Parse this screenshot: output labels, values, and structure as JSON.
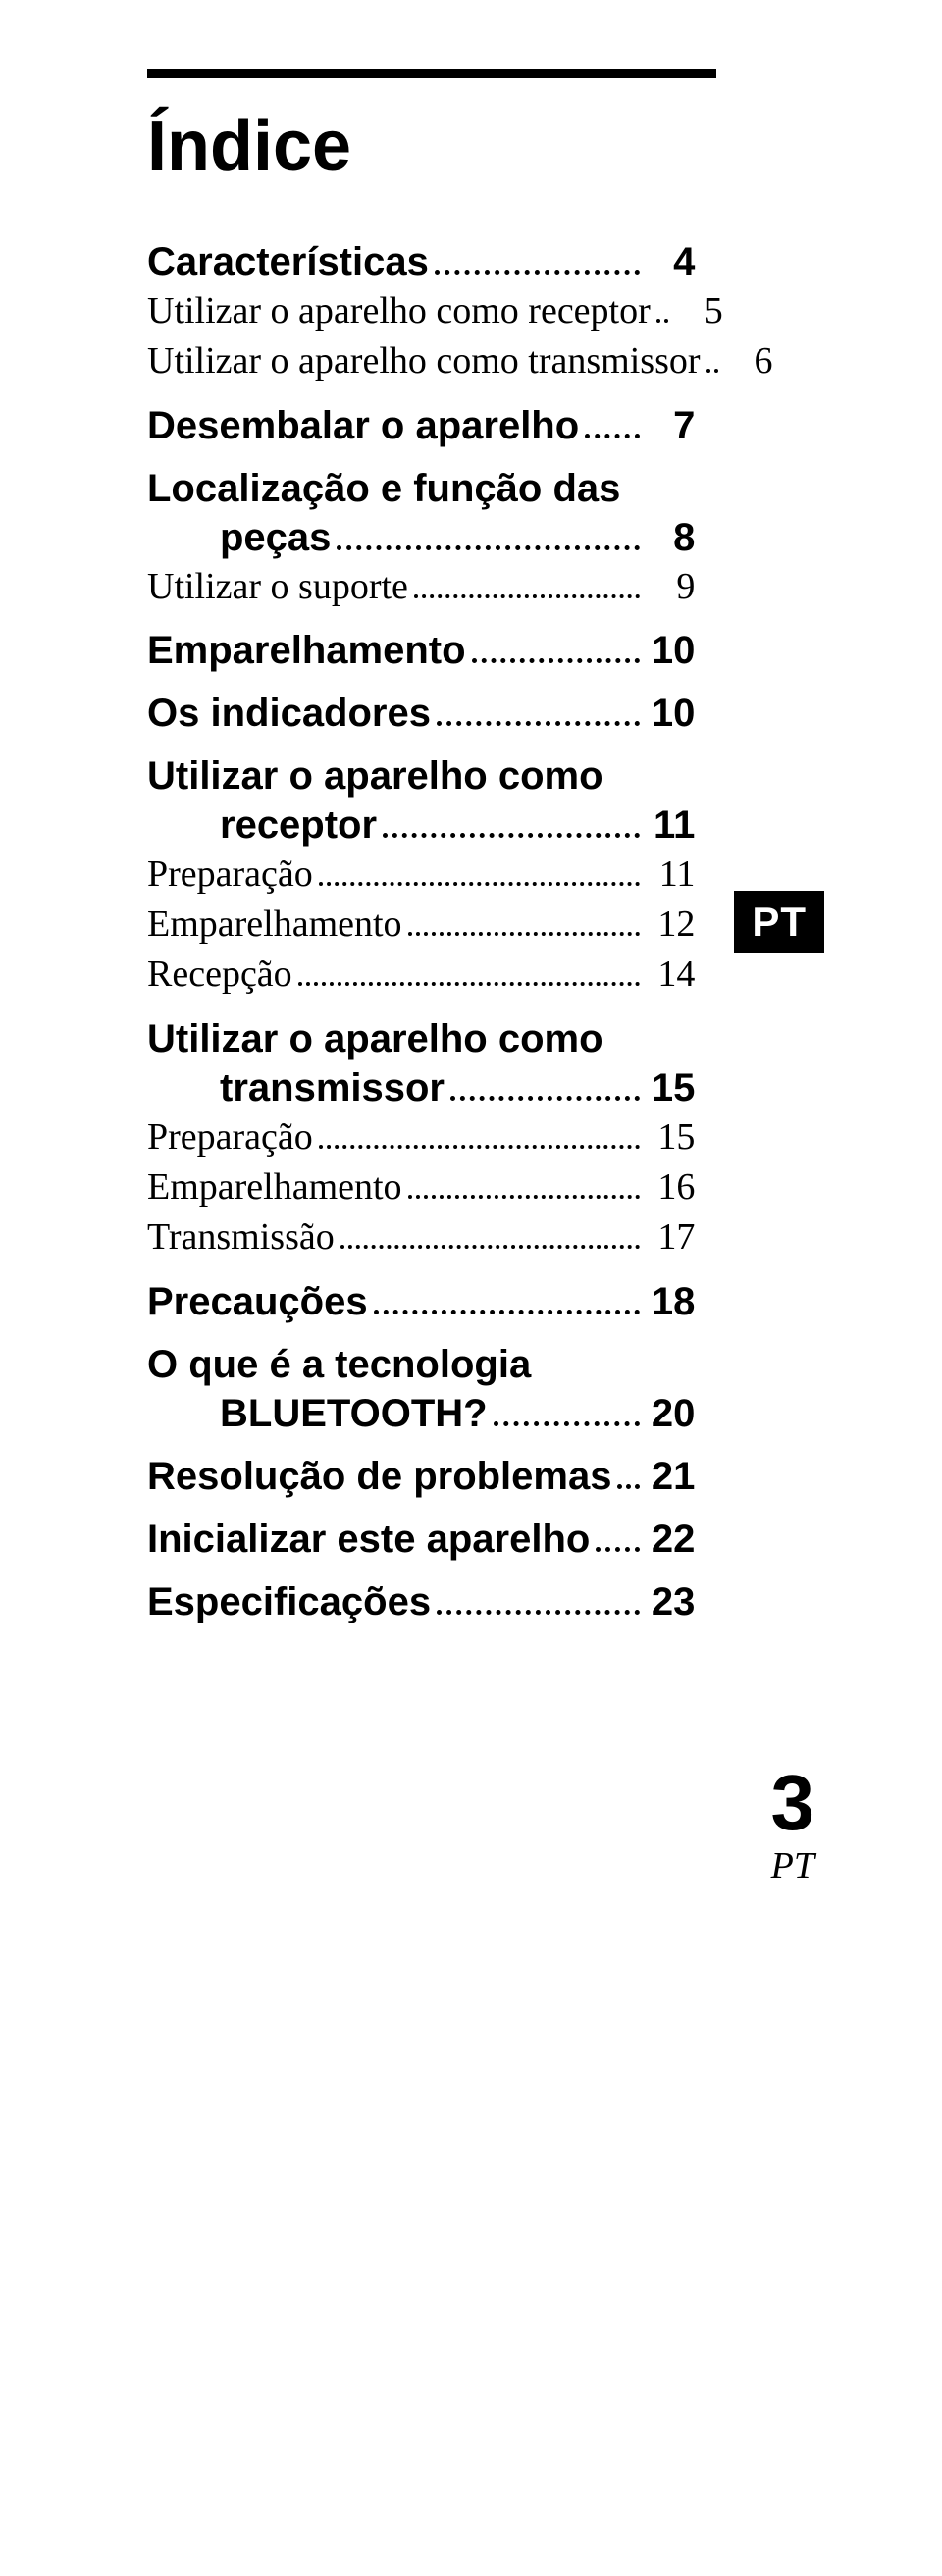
{
  "colors": {
    "fg": "#000000",
    "bg": "#ffffff"
  },
  "title": "Índice",
  "badge": "PT",
  "footer": {
    "page_num": "3",
    "lang": "PT"
  },
  "toc": [
    {
      "type": "chapter",
      "label": "Características",
      "page": "4"
    },
    {
      "type": "sub",
      "label": "Utilizar o aparelho como receptor",
      "page": "5"
    },
    {
      "type": "sub",
      "label": "Utilizar o aparelho como transmissor",
      "page": "6"
    },
    {
      "type": "chapter",
      "label": "Desembalar o aparelho",
      "page": "7"
    },
    {
      "type": "chapter_multiline",
      "label_lines": [
        "Localização e função das",
        "peças"
      ],
      "page": "8"
    },
    {
      "type": "sub",
      "label": "Utilizar o suporte",
      "page": "9"
    },
    {
      "type": "chapter",
      "label": "Emparelhamento",
      "page": "10"
    },
    {
      "type": "chapter",
      "label": "Os indicadores",
      "page": "10"
    },
    {
      "type": "chapter_multiline",
      "label_lines": [
        "Utilizar o aparelho como",
        "receptor"
      ],
      "page": "11"
    },
    {
      "type": "sub",
      "label": "Preparação",
      "page": "11"
    },
    {
      "type": "sub",
      "label": "Emparelhamento",
      "page": "12"
    },
    {
      "type": "sub",
      "label": "Recepção",
      "page": "14"
    },
    {
      "type": "chapter_multiline",
      "label_lines": [
        "Utilizar o aparelho como",
        "transmissor"
      ],
      "page": "15"
    },
    {
      "type": "sub",
      "label": "Preparação",
      "page": "15"
    },
    {
      "type": "sub",
      "label": "Emparelhamento",
      "page": "16"
    },
    {
      "type": "sub",
      "label": "Transmissão",
      "page": "17"
    },
    {
      "type": "chapter",
      "label": "Precauções",
      "page": "18"
    },
    {
      "type": "chapter_multiline",
      "label_lines": [
        "O que é a tecnologia",
        "BLUETOOTH?"
      ],
      "page": "20"
    },
    {
      "type": "chapter",
      "label": "Resolução de problemas",
      "page": "21"
    },
    {
      "type": "chapter",
      "label": "Inicializar este aparelho",
      "page": "22"
    },
    {
      "type": "chapter",
      "label": "Especificações",
      "page": "23"
    }
  ]
}
